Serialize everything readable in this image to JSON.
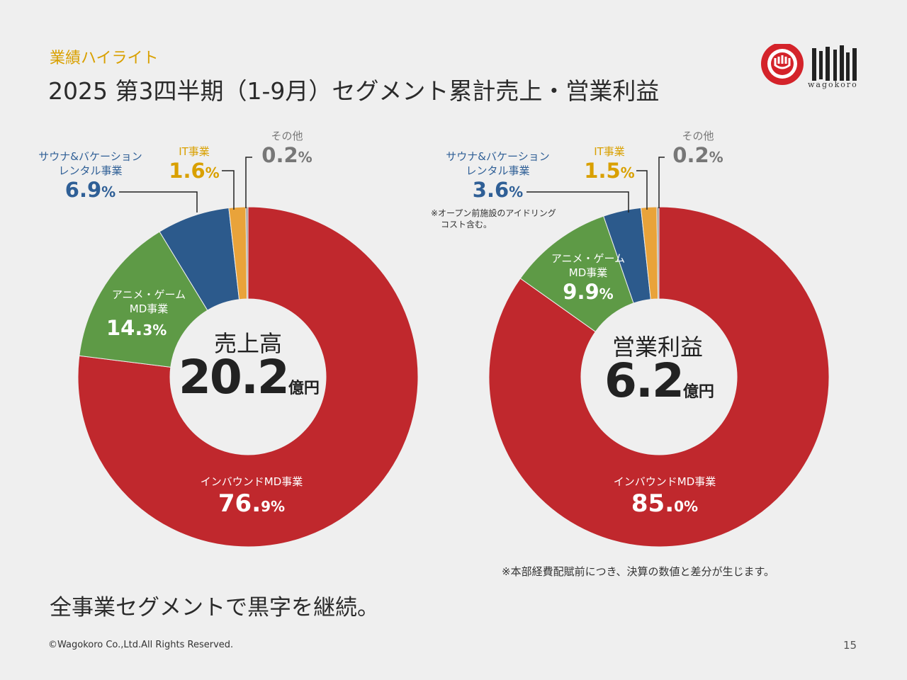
{
  "header": {
    "kicker": "業績ハイライト",
    "title": "2025 第3四半期（1-9月）セグメント累計売上・営業利益"
  },
  "logo": {
    "text": "wagokoro"
  },
  "colors": {
    "inbound": "#c0282d",
    "anime": "#5e9a46",
    "sauna": "#2c5a8c",
    "it": "#e9a33a",
    "other": "#999999"
  },
  "chart_data": [
    {
      "type": "pie",
      "center_label": "売上高",
      "center_value": "20.2",
      "center_unit": "億円",
      "slices": [
        {
          "name": "インバウンドMD事業",
          "value": 76.9,
          "pct_main": "76.",
          "pct_small": "9%"
        },
        {
          "name": "アニメ・ゲーム\nMD事業",
          "value": 14.3,
          "pct_main": "14.",
          "pct_small": "3%"
        },
        {
          "name": "サウナ&バケーション\nレンタル事業",
          "value": 6.9,
          "pct_main": "6.9",
          "pct_small": "%"
        },
        {
          "name": "IT事業",
          "value": 1.6,
          "pct_main": "1.6",
          "pct_small": "%"
        },
        {
          "name": "その他",
          "value": 0.2,
          "pct_main": "0.2",
          "pct_small": "%"
        }
      ]
    },
    {
      "type": "pie",
      "center_label": "営業利益",
      "center_value": "6.2",
      "center_unit": "億円",
      "slices": [
        {
          "name": "インバウンドMD事業",
          "value": 85.0,
          "pct_main": "85.",
          "pct_small": "0%"
        },
        {
          "name": "アニメ・ゲーム\nMD事業",
          "value": 9.9,
          "pct_main": "9.9",
          "pct_small": "%"
        },
        {
          "name": "サウナ&バケーション\nレンタル事業",
          "value": 3.6,
          "pct_main": "3.6",
          "pct_small": "%"
        },
        {
          "name": "IT事業",
          "value": 1.5,
          "pct_main": "1.5",
          "pct_small": "%"
        },
        {
          "name": "その他",
          "value": 0.2,
          "pct_main": "0.2",
          "pct_small": "%"
        }
      ]
    }
  ],
  "labels": {
    "inbound": "インバウンドMD事業",
    "anime_1": "アニメ・ゲーム",
    "anime_2": "MD事業",
    "sauna_1": "サウナ&バケーション",
    "sauna_2": "レンタル事業",
    "it": "IT事業",
    "other": "その他"
  },
  "notes": {
    "sauna_note_1": "※オープン前施設のアイドリング",
    "sauna_note_2": "コスト含む。",
    "footnote": "※本部経費配賦前につき、決算の数値と差分が生じます。"
  },
  "summary": "全事業セグメントで黒字を継続。",
  "footer": {
    "copyright": "©Wagokoro Co.,Ltd.All Rights Reserved.",
    "page": "15"
  }
}
